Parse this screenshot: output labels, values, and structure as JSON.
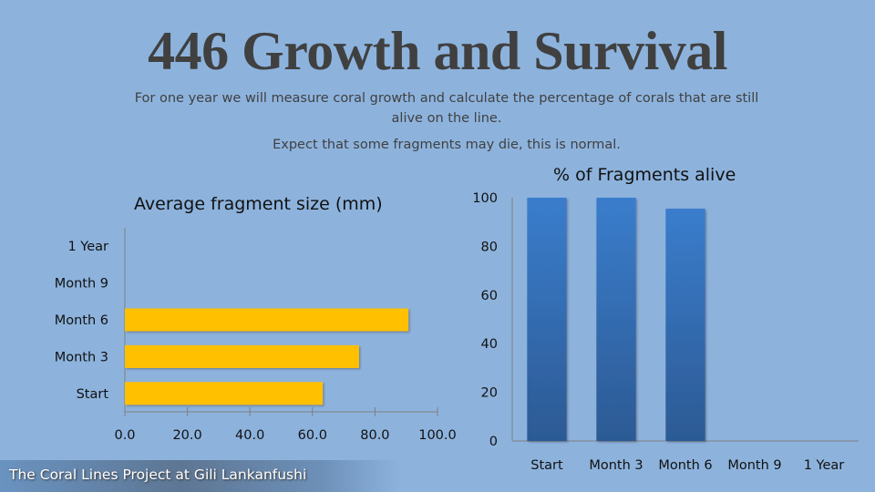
{
  "slide": {
    "title": "446 Growth and Survival",
    "subtitle_line1": "For one year we will measure coral growth and calculate the percentage of corals that are still alive on the line.",
    "subtitle_line2": "Expect that some fragments may die, this is normal.",
    "footer": "The Coral Lines Project at Gili Lankanfushi",
    "colors": {
      "background": "#8db3dd",
      "bar_yellow": "#ffc000",
      "bar_blue": "#3a7bc8"
    }
  },
  "chart_data": [
    {
      "type": "bar",
      "orientation": "horizontal",
      "title": "Average fragment size (mm)",
      "categories": [
        "Start",
        "Month 3",
        "Month 6",
        "Month 9",
        "1 Year"
      ],
      "values": [
        63.3,
        74.9,
        90.7,
        null,
        null
      ],
      "xlim": [
        0,
        100
      ],
      "xticks": [
        "0.0",
        "20.0",
        "40.0",
        "60.0",
        "80.0",
        "100.0"
      ],
      "xlabel": "",
      "ylabel": "",
      "grid": false,
      "legend": "none"
    },
    {
      "type": "bar",
      "orientation": "vertical",
      "title": "% of Fragments alive",
      "categories": [
        "Start",
        "Month 3",
        "Month 6",
        "Month 9",
        "1 Year"
      ],
      "values": [
        100,
        100,
        95.5,
        null,
        null
      ],
      "ylim": [
        0,
        100
      ],
      "yticks": [
        "0",
        "20",
        "40",
        "60",
        "80",
        "100"
      ],
      "xlabel": "",
      "ylabel": "",
      "grid": false,
      "legend": "none"
    }
  ]
}
